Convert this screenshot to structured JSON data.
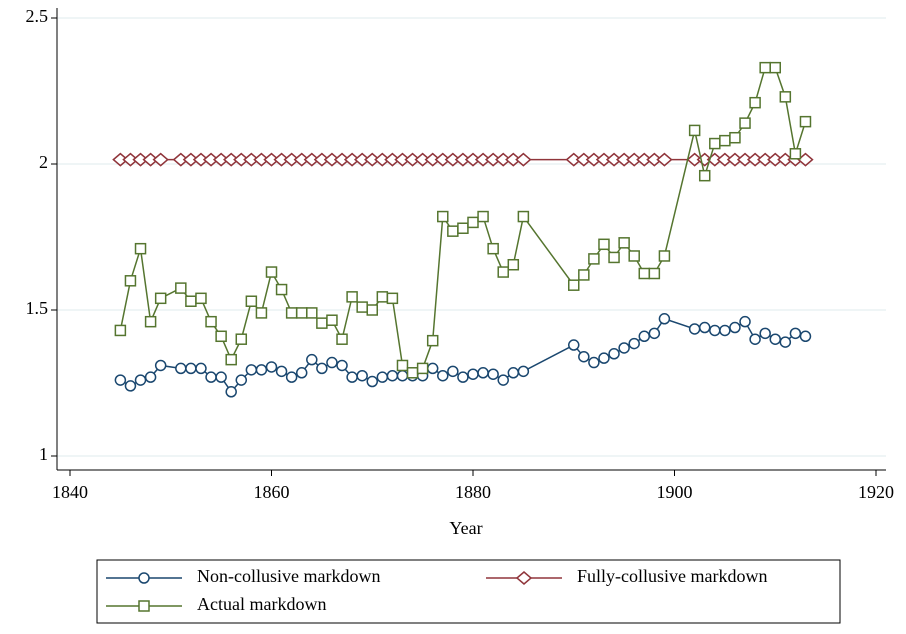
{
  "chart_data": {
    "type": "line",
    "x_label": "Year",
    "x": [
      1845,
      1846,
      1847,
      1848,
      1849,
      1851,
      1852,
      1853,
      1854,
      1855,
      1856,
      1857,
      1858,
      1859,
      1860,
      1861,
      1862,
      1863,
      1864,
      1865,
      1866,
      1867,
      1868,
      1869,
      1870,
      1871,
      1872,
      1873,
      1874,
      1875,
      1876,
      1877,
      1878,
      1879,
      1880,
      1881,
      1882,
      1883,
      1884,
      1885,
      1890,
      1891,
      1892,
      1893,
      1894,
      1895,
      1896,
      1897,
      1898,
      1899,
      1902,
      1903,
      1904,
      1905,
      1906,
      1907,
      1908,
      1909,
      1910,
      1911,
      1912,
      1913
    ],
    "series": [
      {
        "name": "Non-collusive markdown",
        "color": "#1a476f",
        "marker": "circle",
        "values": [
          1.26,
          1.24,
          1.26,
          1.27,
          1.31,
          1.3,
          1.3,
          1.3,
          1.27,
          1.27,
          1.22,
          1.26,
          1.295,
          1.295,
          1.305,
          1.29,
          1.27,
          1.285,
          1.33,
          1.3,
          1.32,
          1.31,
          1.27,
          1.275,
          1.255,
          1.27,
          1.275,
          1.275,
          1.275,
          1.275,
          1.3,
          1.275,
          1.29,
          1.27,
          1.28,
          1.285,
          1.28,
          1.26,
          1.285,
          1.29,
          1.38,
          1.34,
          1.32,
          1.335,
          1.35,
          1.37,
          1.385,
          1.41,
          1.42,
          1.47,
          1.435,
          1.44,
          1.43,
          1.43,
          1.44,
          1.46,
          1.4,
          1.42,
          1.4,
          1.39,
          1.42,
          1.41
        ]
      },
      {
        "name": "Fully-collusive markdown",
        "color": "#90353b",
        "marker": "diamond",
        "values": [
          2.015,
          2.015,
          2.015,
          2.015,
          2.015,
          2.015,
          2.015,
          2.015,
          2.015,
          2.015,
          2.015,
          2.015,
          2.015,
          2.015,
          2.015,
          2.015,
          2.015,
          2.015,
          2.015,
          2.015,
          2.015,
          2.015,
          2.015,
          2.015,
          2.015,
          2.015,
          2.015,
          2.015,
          2.015,
          2.015,
          2.015,
          2.015,
          2.015,
          2.015,
          2.015,
          2.015,
          2.015,
          2.015,
          2.015,
          2.015,
          2.015,
          2.015,
          2.015,
          2.015,
          2.015,
          2.015,
          2.015,
          2.015,
          2.015,
          2.015,
          2.015,
          2.015,
          2.015,
          2.015,
          2.015,
          2.015,
          2.015,
          2.015,
          2.015,
          2.015,
          2.015,
          2.015
        ]
      },
      {
        "name": "Actual markdown",
        "color": "#55752f",
        "marker": "square",
        "values": [
          1.43,
          1.6,
          1.71,
          1.46,
          1.54,
          1.575,
          1.53,
          1.54,
          1.46,
          1.41,
          1.33,
          1.4,
          1.53,
          1.49,
          1.63,
          1.57,
          1.49,
          1.49,
          1.49,
          1.455,
          1.465,
          1.4,
          1.545,
          1.51,
          1.5,
          1.545,
          1.54,
          1.31,
          1.285,
          1.3,
          1.395,
          1.82,
          1.77,
          1.78,
          1.8,
          1.82,
          1.71,
          1.63,
          1.655,
          1.82,
          1.585,
          1.62,
          1.675,
          1.725,
          1.68,
          1.73,
          1.685,
          1.625,
          1.625,
          1.685,
          2.115,
          1.96,
          2.07,
          2.08,
          2.09,
          2.14,
          2.21,
          2.33,
          2.33,
          2.23,
          2.035,
          2.145
        ]
      }
    ],
    "xlim": [
      1840,
      1920
    ],
    "xticks": [
      1840,
      1860,
      1880,
      1900,
      1920
    ],
    "ylim": [
      1,
      2.5
    ],
    "yticks": [
      1,
      1.5,
      2,
      2.5
    ],
    "grid": true,
    "legend": "bottom"
  }
}
